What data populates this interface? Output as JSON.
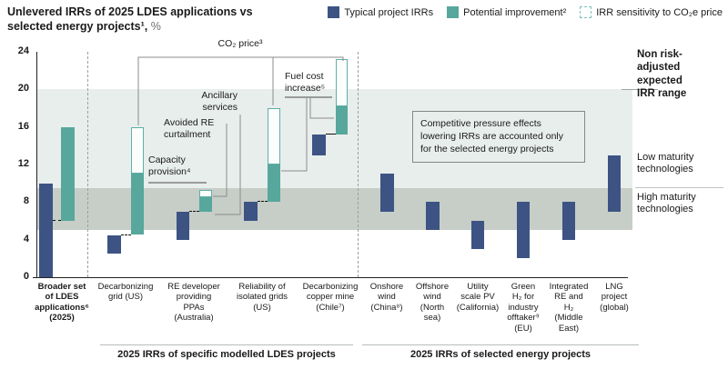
{
  "title": {
    "line1": "Unlevered IRRs of 2025 LDES applications vs",
    "line2": "selected energy projects¹,",
    "unit": "%"
  },
  "legend": [
    {
      "label": "Typical project IRRs",
      "swatch": "solid-blue"
    },
    {
      "label": "Potential improvement²",
      "swatch": "solid-teal"
    },
    {
      "label": "IRR sensitivity to CO₂e price",
      "swatch": "dashed-teal-outline"
    }
  ],
  "colors": {
    "typical_irr": "#3d5384",
    "potential_improvement": "#57a79c",
    "co2_sensitivity_border": "#5fb0a5",
    "band_low_maturity": "#e8eeec",
    "band_high_maturity": "#c6cec7"
  },
  "right_labels": {
    "expected_range": [
      "Non risk-",
      "adjusted",
      "expected",
      "IRR range"
    ],
    "low_maturity": [
      "Low maturity",
      "technologies"
    ],
    "high_maturity": [
      "High maturity",
      "technologies"
    ]
  },
  "annotations": {
    "co2_price": "CO₂ price³",
    "fuel_cost": [
      "Fuel cost",
      "increase⁵"
    ],
    "ancillary": [
      "Ancillary",
      "services"
    ],
    "avoided": [
      "Avoided RE",
      "curtailment"
    ],
    "capacity": [
      "Capacity",
      "provision⁴"
    ],
    "note": "Competitive pressure effects lowering IRRs are accounted only for the selected energy projects"
  },
  "sections": [
    {
      "label": "2025 IRRs of specific modelled LDES projects"
    },
    {
      "label": "2025 IRRs of selected energy projects"
    }
  ],
  "chart_data": {
    "type": "bar",
    "title": "Unlevered IRRs of 2025 LDES applications vs selected energy projects, %",
    "ylabel": "%",
    "ylim": [
      0,
      24
    ],
    "yticks": [
      0,
      4,
      8,
      12,
      16,
      20,
      24
    ],
    "grid": false,
    "legend_position": "top-right",
    "bands": [
      {
        "name": "Low maturity technologies (non risk-adjusted expected IRR range)",
        "from": 9.5,
        "to": 20
      },
      {
        "name": "High maturity technologies (non risk-adjusted expected IRR range)",
        "from": 5,
        "to": 9.5
      }
    ],
    "series_names": [
      "Typical project IRRs",
      "Potential improvement",
      "IRR sensitivity to CO2e price"
    ],
    "groups": [
      {
        "category": "Broader set of LDES applications⁶ (2025)",
        "label_lines": [
          "Broader set",
          "of LDES",
          "applications⁶",
          "(2025)"
        ],
        "bold": true,
        "section": "ldes-overview",
        "typical": [
          0,
          10
        ],
        "improvement": [
          6,
          16
        ],
        "connector": "dashed"
      },
      {
        "category": "Decarbonizing grid (US)",
        "label_lines": [
          "Decarbonizing",
          "grid (US)"
        ],
        "section": "ldes-projects",
        "typical": [
          2.5,
          4.5
        ],
        "improvement": [
          4.5,
          11
        ],
        "co2_sensitivity": [
          11,
          16
        ],
        "connector": "dashed"
      },
      {
        "category": "RE developer providing PPAs (Australia)",
        "label_lines": [
          "RE developer",
          "providing",
          "PPAs",
          "(Australia)"
        ],
        "section": "ldes-projects",
        "typical": [
          4,
          7
        ],
        "improvement": [
          7,
          8.5
        ],
        "co2_sensitivity": [
          8.5,
          9.3
        ],
        "connector": "dashed"
      },
      {
        "category": "Reliability of isolated grids (US)",
        "label_lines": [
          "Reliability of",
          "isolated grids",
          "(US)"
        ],
        "section": "ldes-projects",
        "typical": [
          6,
          8
        ],
        "improvement": [
          8,
          12
        ],
        "co2_sensitivity": [
          12,
          18
        ],
        "connector": "dashed"
      },
      {
        "category": "Decarbonizing copper mine (Chile⁷)",
        "label_lines": [
          "Decarbonizing",
          "copper mine",
          "(Chile⁷)"
        ],
        "section": "ldes-projects",
        "typical": [
          13,
          15.2
        ],
        "improvement": [
          15.2,
          18.2
        ],
        "co2_sensitivity": [
          18.2,
          23.2
        ],
        "connector": "solid"
      },
      {
        "category": "Onshore wind (China⁸)",
        "label_lines": [
          "Onshore",
          "wind",
          "(China⁸)"
        ],
        "section": "energy-projects",
        "typical": [
          7,
          11
        ]
      },
      {
        "category": "Offshore wind (North sea)",
        "label_lines": [
          "Offshore",
          "wind",
          "(North",
          "sea)"
        ],
        "section": "energy-projects",
        "typical": [
          5,
          8
        ]
      },
      {
        "category": "Utility scale PV (California)",
        "label_lines": [
          "Utility",
          "scale PV",
          "(California)"
        ],
        "section": "energy-projects",
        "typical": [
          3,
          6
        ]
      },
      {
        "category": "Green H₂ for industry offtaker⁹ (EU)",
        "label_lines": [
          "Green",
          "H₂ for",
          "industry",
          "offtaker⁹",
          "(EU)"
        ],
        "section": "energy-projects",
        "typical": [
          2,
          8
        ]
      },
      {
        "category": "Integrated RE and H₂ (Middle East)",
        "label_lines": [
          "Integrated",
          "RE and",
          "H₂",
          "(Middle",
          "East)"
        ],
        "section": "energy-projects",
        "typical": [
          4,
          8
        ]
      },
      {
        "category": "LNG project (global)",
        "label_lines": [
          "LNG",
          "project",
          "(global)"
        ],
        "section": "energy-projects",
        "typical": [
          7,
          13
        ]
      }
    ]
  }
}
